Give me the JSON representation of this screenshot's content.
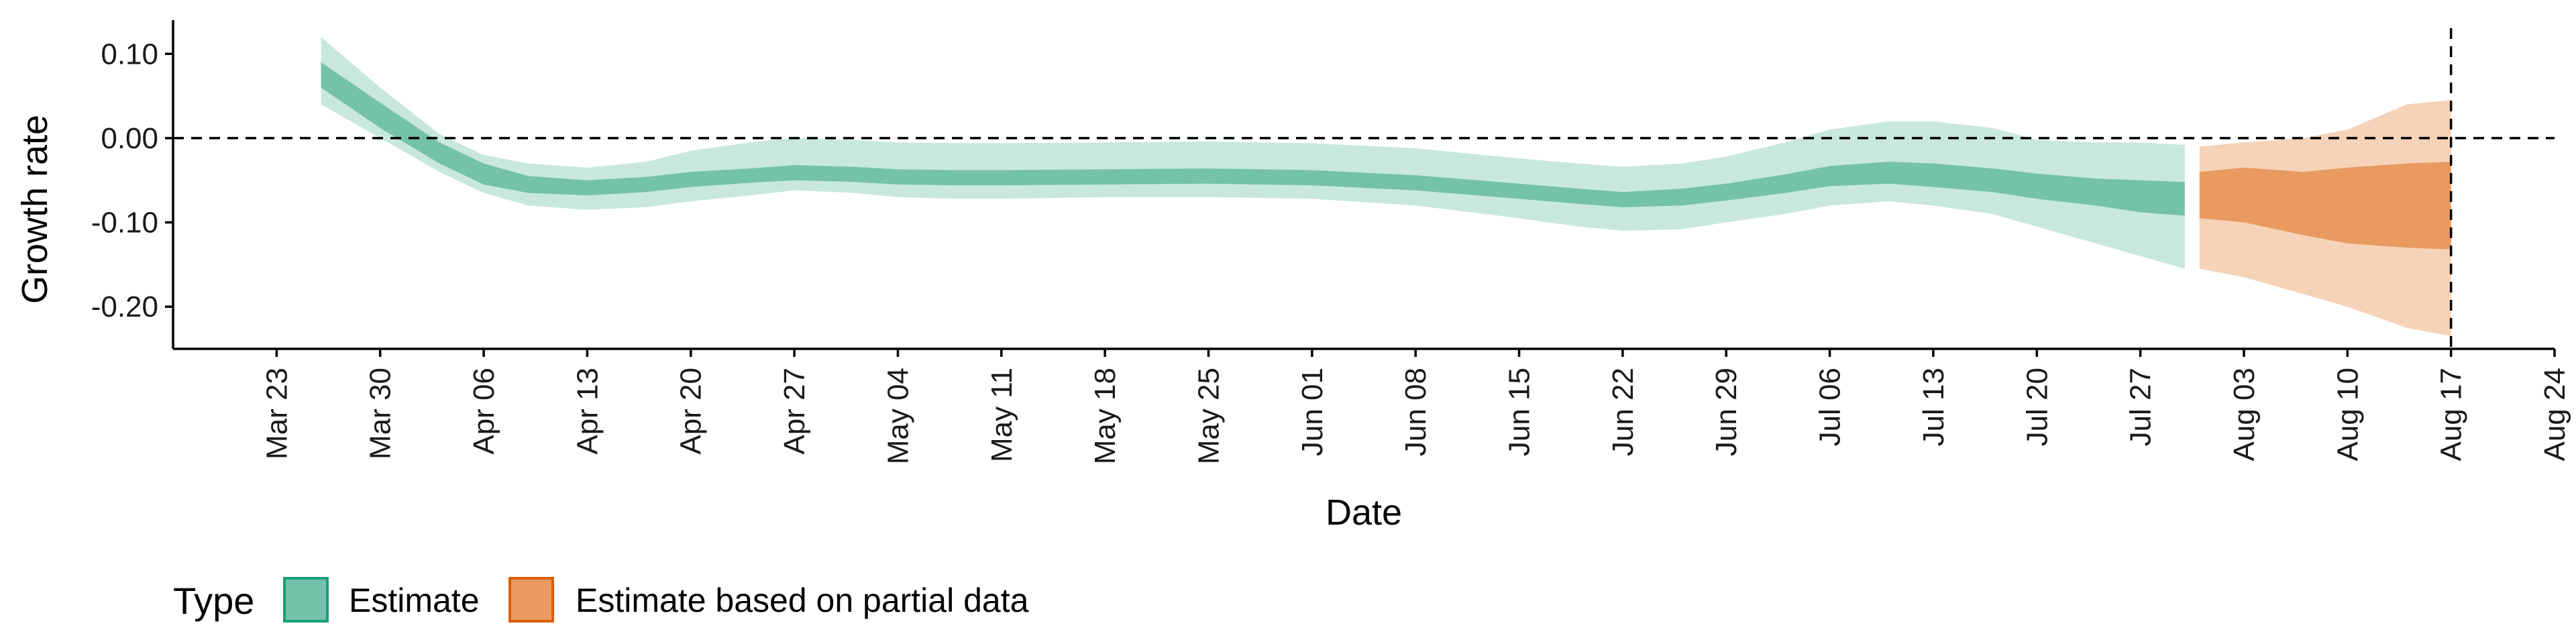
{
  "chart_data": {
    "type": "area",
    "xlabel": "Date",
    "ylabel": "Growth rate",
    "ylim": [
      -0.25,
      0.14
    ],
    "xlim": [
      "2020-03-16",
      "2020-08-24"
    ],
    "y_ticks": [
      {
        "value": 0.1,
        "label": "0.10"
      },
      {
        "value": 0.0,
        "label": "0.00"
      },
      {
        "value": -0.1,
        "label": "-0.10"
      },
      {
        "value": -0.2,
        "label": "-0.20"
      }
    ],
    "x_ticks": [
      {
        "date": "2020-03-23",
        "label": "Mar 23"
      },
      {
        "date": "2020-03-30",
        "label": "Mar 30"
      },
      {
        "date": "2020-04-06",
        "label": "Apr 06"
      },
      {
        "date": "2020-04-13",
        "label": "Apr 13"
      },
      {
        "date": "2020-04-20",
        "label": "Apr 20"
      },
      {
        "date": "2020-04-27",
        "label": "Apr 27"
      },
      {
        "date": "2020-05-04",
        "label": "May 04"
      },
      {
        "date": "2020-05-11",
        "label": "May 11"
      },
      {
        "date": "2020-05-18",
        "label": "May 18"
      },
      {
        "date": "2020-05-25",
        "label": "May 25"
      },
      {
        "date": "2020-06-01",
        "label": "Jun 01"
      },
      {
        "date": "2020-06-08",
        "label": "Jun 08"
      },
      {
        "date": "2020-06-15",
        "label": "Jun 15"
      },
      {
        "date": "2020-06-22",
        "label": "Jun 22"
      },
      {
        "date": "2020-06-29",
        "label": "Jun 29"
      },
      {
        "date": "2020-07-06",
        "label": "Jul 06"
      },
      {
        "date": "2020-07-13",
        "label": "Jul 13"
      },
      {
        "date": "2020-07-20",
        "label": "Jul 20"
      },
      {
        "date": "2020-07-27",
        "label": "Jul 27"
      },
      {
        "date": "2020-08-03",
        "label": "Aug 03"
      },
      {
        "date": "2020-08-10",
        "label": "Aug 10"
      },
      {
        "date": "2020-08-17",
        "label": "Aug 17"
      },
      {
        "date": "2020-08-24",
        "label": "Aug 24"
      }
    ],
    "reference_lines": {
      "horizontal_y": 0.0,
      "vertical_date": "2020-08-17",
      "style": "dashed"
    },
    "grid": false,
    "legend": {
      "title": "Type",
      "position": "bottom-left",
      "items": [
        {
          "label": "Estimate",
          "fill": "#74c2a9",
          "stroke": "#1b9e77"
        },
        {
          "label": "Estimate based on partial data",
          "fill": "#e89a60",
          "stroke": "#d95f02"
        }
      ]
    },
    "series": [
      {
        "name": "Estimate",
        "color": "#1b9e77",
        "inner_color": "#74c2a9",
        "outer_color": "#c9e8dc",
        "points": [
          {
            "date": "2020-03-26",
            "outer": [
              0.04,
              0.12
            ],
            "inner": [
              0.06,
              0.09
            ]
          },
          {
            "date": "2020-03-30",
            "outer": [
              0.0,
              0.06
            ],
            "inner": [
              0.012,
              0.042
            ]
          },
          {
            "date": "2020-04-03",
            "outer": [
              -0.04,
              0.005
            ],
            "inner": [
              -0.03,
              -0.005
            ]
          },
          {
            "date": "2020-04-06",
            "outer": [
              -0.065,
              -0.02
            ],
            "inner": [
              -0.055,
              -0.03
            ]
          },
          {
            "date": "2020-04-09",
            "outer": [
              -0.08,
              -0.03
            ],
            "inner": [
              -0.065,
              -0.045
            ]
          },
          {
            "date": "2020-04-13",
            "outer": [
              -0.085,
              -0.035
            ],
            "inner": [
              -0.068,
              -0.05
            ]
          },
          {
            "date": "2020-04-17",
            "outer": [
              -0.082,
              -0.028
            ],
            "inner": [
              -0.064,
              -0.046
            ]
          },
          {
            "date": "2020-04-20",
            "outer": [
              -0.075,
              -0.015
            ],
            "inner": [
              -0.058,
              -0.04
            ]
          },
          {
            "date": "2020-04-24",
            "outer": [
              -0.068,
              -0.005
            ],
            "inner": [
              -0.053,
              -0.036
            ]
          },
          {
            "date": "2020-04-27",
            "outer": [
              -0.062,
              0.0
            ],
            "inner": [
              -0.05,
              -0.032
            ]
          },
          {
            "date": "2020-05-01",
            "outer": [
              -0.065,
              -0.002
            ],
            "inner": [
              -0.052,
              -0.034
            ]
          },
          {
            "date": "2020-05-04",
            "outer": [
              -0.07,
              -0.005
            ],
            "inner": [
              -0.055,
              -0.037
            ]
          },
          {
            "date": "2020-05-08",
            "outer": [
              -0.072,
              -0.006
            ],
            "inner": [
              -0.056,
              -0.038
            ]
          },
          {
            "date": "2020-05-11",
            "outer": [
              -0.072,
              -0.006
            ],
            "inner": [
              -0.056,
              -0.038
            ]
          },
          {
            "date": "2020-05-18",
            "outer": [
              -0.07,
              -0.005
            ],
            "inner": [
              -0.055,
              -0.037
            ]
          },
          {
            "date": "2020-05-25",
            "outer": [
              -0.07,
              -0.004
            ],
            "inner": [
              -0.054,
              -0.036
            ]
          },
          {
            "date": "2020-06-01",
            "outer": [
              -0.072,
              -0.006
            ],
            "inner": [
              -0.056,
              -0.038
            ]
          },
          {
            "date": "2020-06-08",
            "outer": [
              -0.08,
              -0.012
            ],
            "inner": [
              -0.062,
              -0.044
            ]
          },
          {
            "date": "2020-06-15",
            "outer": [
              -0.095,
              -0.024
            ],
            "inner": [
              -0.072,
              -0.054
            ]
          },
          {
            "date": "2020-06-19",
            "outer": [
              -0.105,
              -0.03
            ],
            "inner": [
              -0.078,
              -0.06
            ]
          },
          {
            "date": "2020-06-22",
            "outer": [
              -0.11,
              -0.034
            ],
            "inner": [
              -0.082,
              -0.064
            ]
          },
          {
            "date": "2020-06-26",
            "outer": [
              -0.108,
              -0.03
            ],
            "inner": [
              -0.08,
              -0.06
            ]
          },
          {
            "date": "2020-06-29",
            "outer": [
              -0.1,
              -0.022
            ],
            "inner": [
              -0.074,
              -0.054
            ]
          },
          {
            "date": "2020-07-03",
            "outer": [
              -0.09,
              -0.005
            ],
            "inner": [
              -0.065,
              -0.043
            ]
          },
          {
            "date": "2020-07-06",
            "outer": [
              -0.08,
              0.01
            ],
            "inner": [
              -0.057,
              -0.033
            ]
          },
          {
            "date": "2020-07-10",
            "outer": [
              -0.075,
              0.02
            ],
            "inner": [
              -0.054,
              -0.028
            ]
          },
          {
            "date": "2020-07-13",
            "outer": [
              -0.08,
              0.02
            ],
            "inner": [
              -0.058,
              -0.03
            ]
          },
          {
            "date": "2020-07-17",
            "outer": [
              -0.09,
              0.012
            ],
            "inner": [
              -0.064,
              -0.036
            ]
          },
          {
            "date": "2020-07-20",
            "outer": [
              -0.105,
              -0.002
            ],
            "inner": [
              -0.072,
              -0.042
            ]
          },
          {
            "date": "2020-07-24",
            "outer": [
              -0.125,
              -0.005
            ],
            "inner": [
              -0.08,
              -0.048
            ]
          },
          {
            "date": "2020-07-27",
            "outer": [
              -0.14,
              -0.005
            ],
            "inner": [
              -0.088,
              -0.05
            ]
          },
          {
            "date": "2020-07-30",
            "outer": [
              -0.155,
              -0.008
            ],
            "inner": [
              -0.092,
              -0.052
            ]
          }
        ]
      },
      {
        "name": "Estimate based on partial data",
        "color": "#d95f02",
        "inner_color": "#e89a60",
        "outer_color": "#f5d3b9",
        "points": [
          {
            "date": "2020-07-31",
            "outer": [
              -0.155,
              -0.01
            ],
            "inner": [
              -0.095,
              -0.04
            ]
          },
          {
            "date": "2020-08-03",
            "outer": [
              -0.165,
              -0.005
            ],
            "inner": [
              -0.1,
              -0.035
            ]
          },
          {
            "date": "2020-08-07",
            "outer": [
              -0.185,
              0.0
            ],
            "inner": [
              -0.115,
              -0.04
            ]
          },
          {
            "date": "2020-08-10",
            "outer": [
              -0.2,
              0.01
            ],
            "inner": [
              -0.125,
              -0.035
            ]
          },
          {
            "date": "2020-08-14",
            "outer": [
              -0.225,
              0.04
            ],
            "inner": [
              -0.13,
              -0.03
            ]
          },
          {
            "date": "2020-08-17",
            "outer": [
              -0.235,
              0.045
            ],
            "inner": [
              -0.132,
              -0.028
            ]
          }
        ]
      }
    ]
  }
}
